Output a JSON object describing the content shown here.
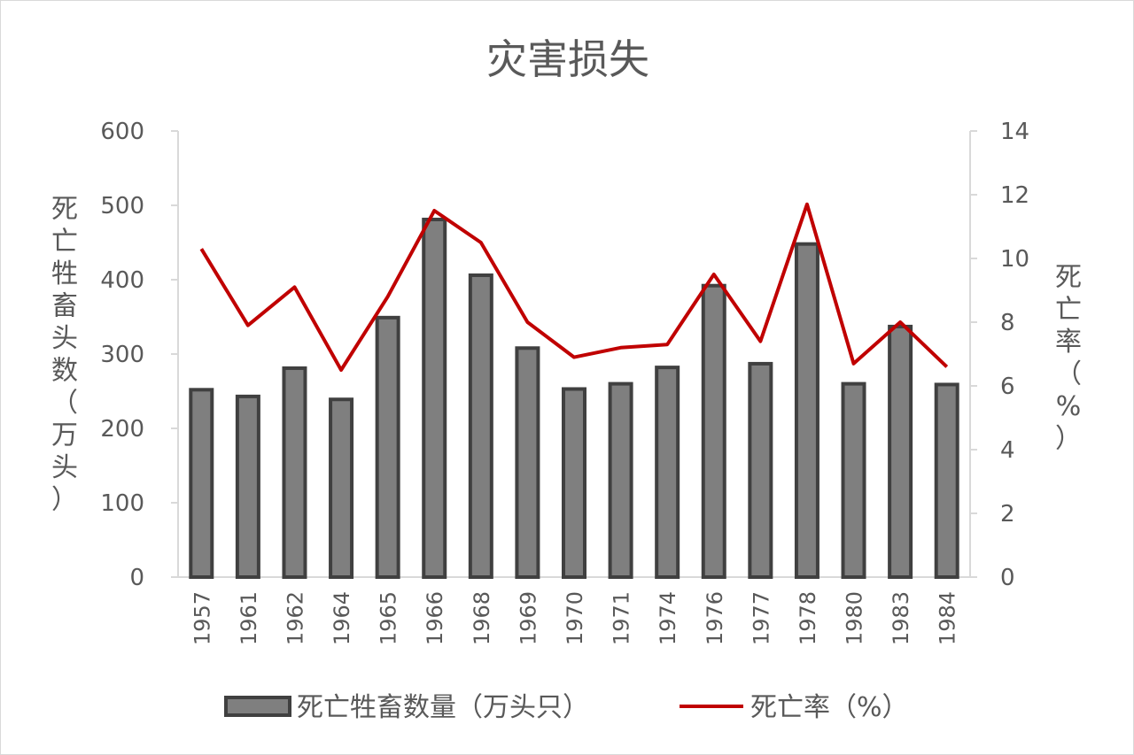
{
  "chart_data": {
    "type": "bar",
    "title": "灾害损失",
    "categories": [
      "1957",
      "1961",
      "1962",
      "1964",
      "1965",
      "1966",
      "1968",
      "1969",
      "1970",
      "1971",
      "1974",
      "1976",
      "1977",
      "1978",
      "1980",
      "1983",
      "1984"
    ],
    "series": [
      {
        "name": "死亡牲畜数量（万头只）",
        "type": "bar",
        "axis": "left",
        "color": "#7f7f7f",
        "values": [
          252,
          243,
          281,
          239,
          349,
          481,
          406,
          308,
          253,
          260,
          282,
          392,
          287,
          448,
          260,
          337,
          259
        ]
      },
      {
        "name": "死亡率（%）",
        "type": "line",
        "axis": "right",
        "color": "#c00000",
        "values": [
          10.3,
          7.9,
          9.1,
          6.5,
          8.8,
          11.5,
          10.5,
          8.0,
          6.9,
          7.2,
          7.3,
          9.5,
          7.4,
          11.7,
          6.7,
          8.0,
          6.6
        ]
      }
    ],
    "ylabel": "死亡牲畜头数（万头）",
    "ylabel_right": "死亡率（%）",
    "ylim": [
      0,
      600
    ],
    "ylim_right": [
      0,
      14
    ],
    "yticks": [
      "0",
      "100",
      "200",
      "300",
      "400",
      "500",
      "600"
    ],
    "yticks_right": [
      "0",
      "2",
      "4",
      "6",
      "8",
      "10",
      "12",
      "14"
    ],
    "grid": false,
    "legend_position": "bottom"
  }
}
